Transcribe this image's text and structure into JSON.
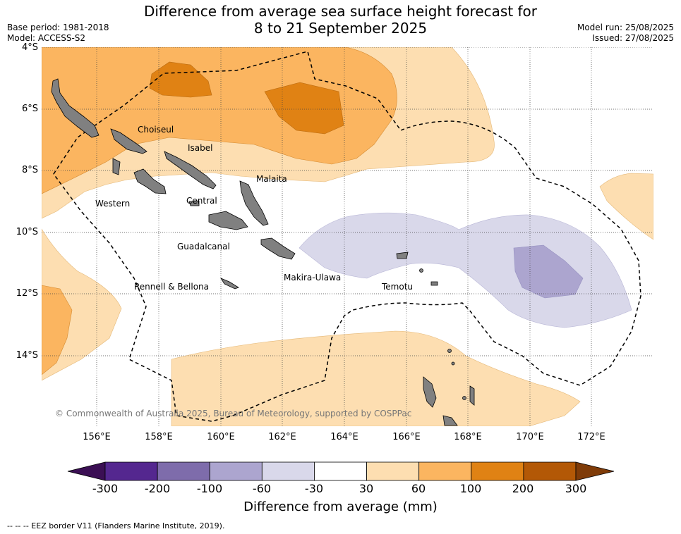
{
  "title_line1": "Difference from average sea surface height forecast for",
  "title_line2": "8 to 21 September 2025",
  "base_period": "Base period: 1981-2018",
  "model": "Model: ACCESS-S2",
  "model_run": "Model run: 25/08/2025",
  "issued": "Issued: 27/08/2025",
  "lat_ticks": [
    "4°S",
    "6°S",
    "8°S",
    "10°S",
    "12°S",
    "14°S"
  ],
  "lon_ticks": [
    "156°E",
    "158°E",
    "160°E",
    "162°E",
    "164°E",
    "166°E",
    "168°E",
    "170°E",
    "172°E"
  ],
  "regions": [
    "Choiseul",
    "Isabel",
    "Malaita",
    "Western",
    "Central",
    "Guadalcanal",
    "Makira-Ulawa",
    "Rennell & Bellona",
    "Temotu"
  ],
  "colorbar": {
    "labels": [
      "-300",
      "-200",
      "-100",
      "-60",
      "-30",
      "30",
      "60",
      "100",
      "200",
      "300"
    ],
    "colors": [
      "#3b0f54",
      "#54278f",
      "#7e6cab",
      "#aca5cf",
      "#d9d8ea",
      "#ffffff",
      "#fddeb1",
      "#fbb560",
      "#e08214",
      "#b35806",
      "#7f3b08"
    ],
    "title": "Difference from average (mm)"
  },
  "copyright": "© Commonwealth of Australia 2025, Bureau of Meteorology, supported by COSPPac",
  "footnote": "--  --  -- EEZ border V11 (Flanders Marine Institute, 2019)."
}
